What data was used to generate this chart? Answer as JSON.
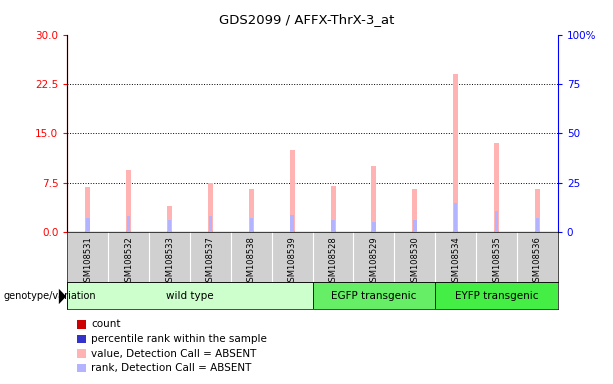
{
  "title": "GDS2099 / AFFX-ThrX-3_at",
  "samples": [
    "GSM108531",
    "GSM108532",
    "GSM108533",
    "GSM108537",
    "GSM108538",
    "GSM108539",
    "GSM108528",
    "GSM108529",
    "GSM108530",
    "GSM108534",
    "GSM108535",
    "GSM108536"
  ],
  "groups": [
    {
      "name": "wild type",
      "indices": [
        0,
        1,
        2,
        3,
        4,
        5
      ]
    },
    {
      "name": "EGFP transgenic",
      "indices": [
        6,
        7,
        8
      ]
    },
    {
      "name": "EYFP transgenic",
      "indices": [
        9,
        10,
        11
      ]
    }
  ],
  "value_absent": [
    6.8,
    9.5,
    4.0,
    7.5,
    6.5,
    12.5,
    7.0,
    10.0,
    6.5,
    24.0,
    13.5,
    6.5
  ],
  "rank_absent_pct": [
    7,
    8,
    6,
    8,
    7,
    9,
    6,
    5,
    6,
    15,
    11,
    7
  ],
  "count_val": [
    1.0,
    1.0,
    0.5,
    0.5,
    0.5,
    0.5,
    0.5,
    1.0,
    0.5,
    3.0,
    2.0,
    0.5
  ],
  "percentile_val": [
    2.0,
    2.5,
    1.5,
    2.0,
    2.0,
    2.5,
    1.5,
    1.5,
    1.5,
    4.0,
    3.0,
    2.0
  ],
  "ylim_left": [
    0,
    30
  ],
  "ylim_right": [
    0,
    100
  ],
  "yticks_left": [
    0,
    7.5,
    15,
    22.5,
    30
  ],
  "yticks_right": [
    0,
    25,
    50,
    75,
    100
  ],
  "color_count": "#cc0000",
  "color_percentile": "#3333cc",
  "color_value_absent": "#ffb3b3",
  "color_rank_absent": "#b3b3ff",
  "group_colors": [
    "#ccffcc",
    "#66ee66",
    "#44ee44"
  ],
  "legend_items": [
    {
      "color": "#cc0000",
      "label": "count"
    },
    {
      "color": "#3333cc",
      "label": "percentile rank within the sample"
    },
    {
      "color": "#ffb3b3",
      "label": "value, Detection Call = ABSENT"
    },
    {
      "color": "#b3b3ff",
      "label": "rank, Detection Call = ABSENT"
    }
  ]
}
